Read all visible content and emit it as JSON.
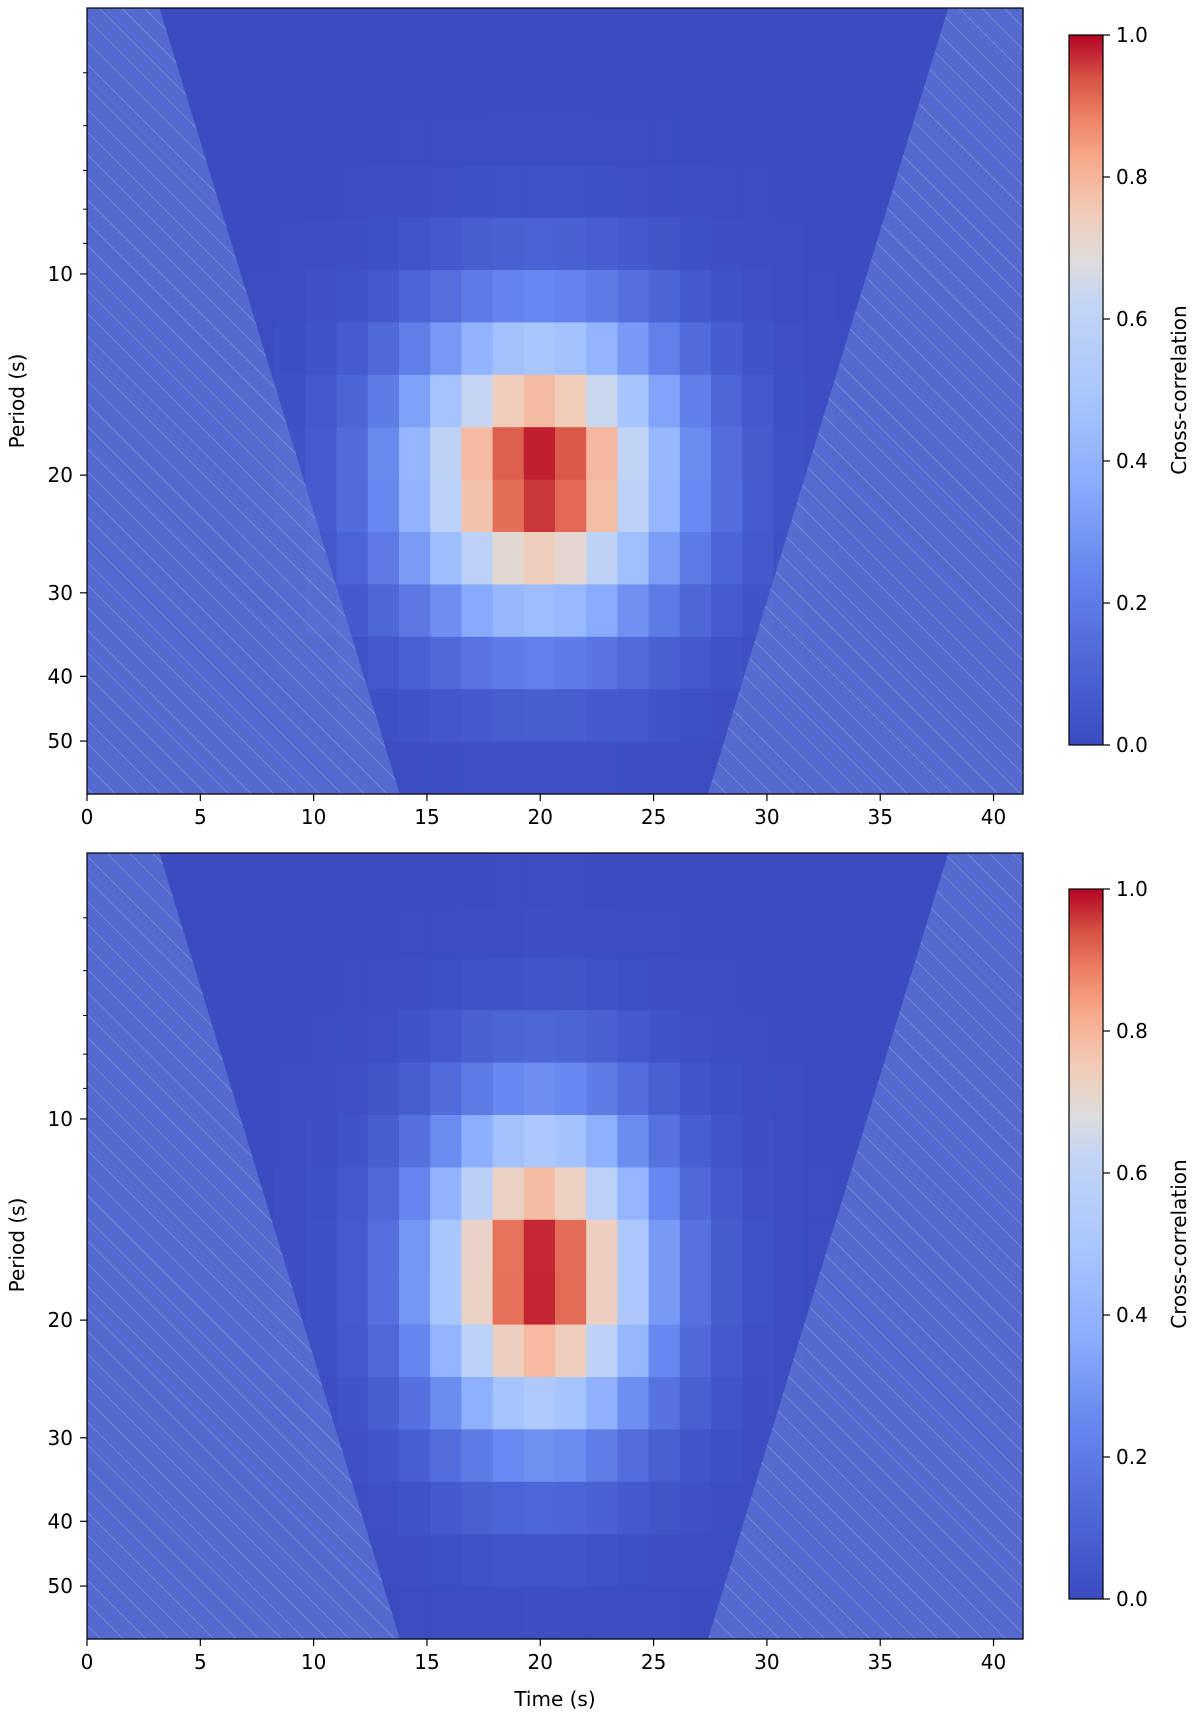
{
  "chart_data": [
    {
      "type": "heatmap",
      "panel": "top",
      "x": [
        0,
        1.4,
        2.8,
        4.2,
        5.6,
        7.0,
        8.4,
        9.8,
        11.2,
        12.6,
        14.0,
        15.4,
        16.8,
        18.2,
        19.6,
        21.0,
        22.4,
        23.8,
        25.2,
        26.6,
        28.0,
        29.4,
        30.8,
        32.2,
        33.6,
        35.0,
        36.4,
        37.8,
        39.2,
        40.6
      ],
      "y_bands": [
        {
          "from": 4,
          "to": 6.5
        },
        {
          "from": 6.5,
          "to": 8.5
        },
        {
          "from": 8.5,
          "to": 10.5
        },
        {
          "from": 10.5,
          "to": 13.0
        },
        {
          "from": 13.0,
          "to": 16.0
        },
        {
          "from": 16.0,
          "to": 19.0
        },
        {
          "from": 19.0,
          "to": 22.0
        },
        {
          "from": 22.0,
          "to": 25.0
        },
        {
          "from": 25.0,
          "to": 28.0
        },
        {
          "from": 28.0,
          "to": 31.5
        },
        {
          "from": 31.5,
          "to": 35.0
        },
        {
          "from": 35.0,
          "to": 39.0
        },
        {
          "from": 39.0,
          "to": 45.0
        },
        {
          "from": 45.0,
          "to": 52.0
        },
        {
          "from": 52.0,
          "to": 60.0
        }
      ],
      "xlabel": "",
      "ylabel": "Period (s)",
      "xlim": [
        0,
        41.3
      ],
      "ylim": [
        4,
        60
      ],
      "yscale": "log",
      "xticks": [
        0,
        5,
        10,
        15,
        20,
        25,
        30,
        35,
        40
      ],
      "yticks": [
        10,
        20,
        30,
        40,
        50
      ],
      "colorbar": {
        "label": "Cross-correlation",
        "ticks": [
          0.0,
          0.2,
          0.4,
          0.6,
          0.8,
          1.0
        ],
        "range": [
          0.0,
          1.0
        ]
      },
      "colormap": "coolwarm",
      "peak": {
        "time": 20,
        "period": 20,
        "value": 1.0,
        "sigma_time": 4.2,
        "sigma_log_period": 0.16
      },
      "rows": 15,
      "cols": 30,
      "cone_of_influence": {
        "left_edge": [
          [
            3.2,
            4
          ],
          [
            13.8,
            60
          ]
        ],
        "right_edge": [
          [
            38.0,
            4
          ],
          [
            27.4,
            60
          ]
        ],
        "hatched": true,
        "fill": "#6a83d9",
        "opacity": 0.55
      }
    },
    {
      "type": "heatmap",
      "panel": "bottom",
      "x": [
        0,
        1.4,
        2.8,
        4.2,
        5.6,
        7.0,
        8.4,
        9.8,
        11.2,
        12.6,
        14.0,
        15.4,
        16.8,
        18.2,
        19.6,
        21.0,
        22.4,
        23.8,
        25.2,
        26.6,
        28.0,
        29.4,
        30.8,
        32.2,
        33.6,
        35.0,
        36.4,
        37.8,
        39.2,
        40.6
      ],
      "xlabel": "Time (s)",
      "ylabel": "Period (s)",
      "xlim": [
        0,
        41.3
      ],
      "ylim": [
        4,
        60
      ],
      "yscale": "log",
      "xticks": [
        0,
        5,
        10,
        15,
        20,
        25,
        30,
        35,
        40
      ],
      "yticks": [
        10,
        20,
        30,
        40,
        50
      ],
      "colorbar": {
        "label": "Cross-correlation",
        "ticks": [
          0.0,
          0.2,
          0.4,
          0.6,
          0.8,
          1.0
        ],
        "range": [
          0.0,
          1.0
        ]
      },
      "colormap": "coolwarm",
      "peak": {
        "time": 20,
        "period": 17,
        "value": 1.0,
        "sigma_time": 3.6,
        "sigma_log_period": 0.17
      },
      "rows": 15,
      "cols": 30,
      "cone_of_influence": {
        "left_edge": [
          [
            3.2,
            4
          ],
          [
            13.8,
            60
          ]
        ],
        "right_edge": [
          [
            38.0,
            4
          ],
          [
            27.4,
            60
          ]
        ],
        "hatched": true,
        "fill": "#6a83d9",
        "opacity": 0.55
      }
    }
  ],
  "colors": {
    "cold": "#3b4cc0",
    "neutral": "#dddddd",
    "hot": "#b40426"
  }
}
